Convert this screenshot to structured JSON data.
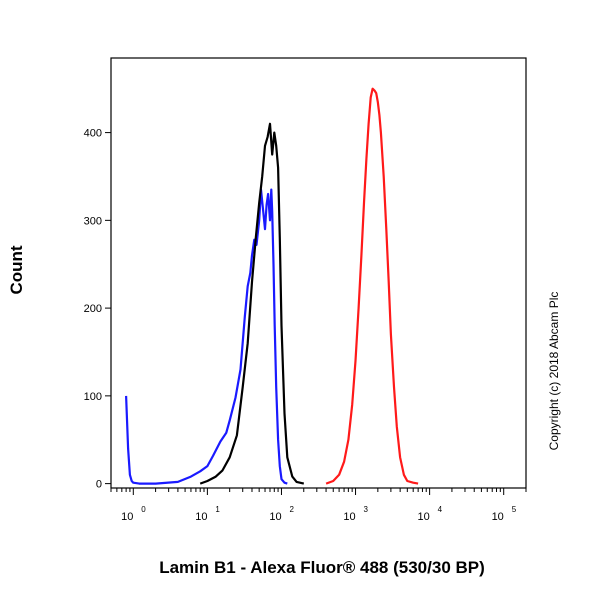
{
  "chart_data": {
    "type": "line",
    "xlabel": "Lamin B1 - Alexa Fluor® 488 (530/30 BP)",
    "ylabel": "Count",
    "xscale": "log",
    "xlim": [
      0.5,
      200000
    ],
    "ylim": [
      -5,
      485
    ],
    "yticks": [
      0,
      100,
      200,
      300,
      400
    ],
    "xticks": [
      {
        "value": 1,
        "base": "10",
        "exp": "0"
      },
      {
        "value": 10,
        "base": "10",
        "exp": "1"
      },
      {
        "value": 100,
        "base": "10",
        "exp": "2"
      },
      {
        "value": 1000,
        "base": "10",
        "exp": "3"
      },
      {
        "value": 10000,
        "base": "10",
        "exp": "4"
      },
      {
        "value": 100000,
        "base": "10",
        "exp": "5"
      }
    ],
    "annotation": "Copyright (c) 2018 Abcam Plc",
    "series": [
      {
        "color": "#1a1aff",
        "x": [
          0.8,
          0.85,
          0.9,
          0.95,
          1.0,
          1.2,
          2,
          4,
          6,
          8,
          10,
          12,
          15,
          18,
          20,
          24,
          28,
          32,
          35,
          38,
          40,
          43,
          46,
          50,
          53,
          56,
          60,
          63,
          66,
          70,
          73,
          75,
          78,
          81,
          85,
          90,
          95,
          100,
          110,
          120
        ],
        "y": [
          100,
          40,
          10,
          3,
          1,
          0,
          0,
          2,
          8,
          14,
          20,
          32,
          48,
          58,
          72,
          98,
          130,
          190,
          225,
          240,
          260,
          278,
          272,
          300,
          335,
          315,
          290,
          318,
          330,
          300,
          335,
          310,
          250,
          180,
          110,
          50,
          20,
          5,
          1,
          0
        ]
      },
      {
        "color": "#000000",
        "x": [
          8,
          10,
          13,
          16,
          20,
          25,
          30,
          35,
          40,
          45,
          50,
          55,
          60,
          65,
          70,
          75,
          80,
          85,
          90,
          95,
          100,
          110,
          120,
          140,
          160,
          200
        ],
        "y": [
          0,
          3,
          8,
          15,
          30,
          55,
          110,
          160,
          230,
          280,
          320,
          350,
          385,
          395,
          410,
          375,
          400,
          385,
          360,
          280,
          180,
          80,
          30,
          8,
          2,
          0
        ]
      },
      {
        "color": "#ff1a1a",
        "x": [
          400,
          500,
          600,
          700,
          800,
          900,
          1000,
          1100,
          1200,
          1300,
          1400,
          1500,
          1600,
          1700,
          1800,
          1900,
          2000,
          2100,
          2200,
          2400,
          2600,
          2800,
          3000,
          3300,
          3600,
          4000,
          4500,
          5000,
          6000,
          7000
        ],
        "y": [
          0,
          3,
          10,
          25,
          50,
          90,
          140,
          200,
          260,
          320,
          370,
          410,
          440,
          450,
          448,
          445,
          435,
          420,
          400,
          350,
          290,
          230,
          170,
          110,
          65,
          30,
          10,
          3,
          1,
          0
        ]
      }
    ]
  }
}
